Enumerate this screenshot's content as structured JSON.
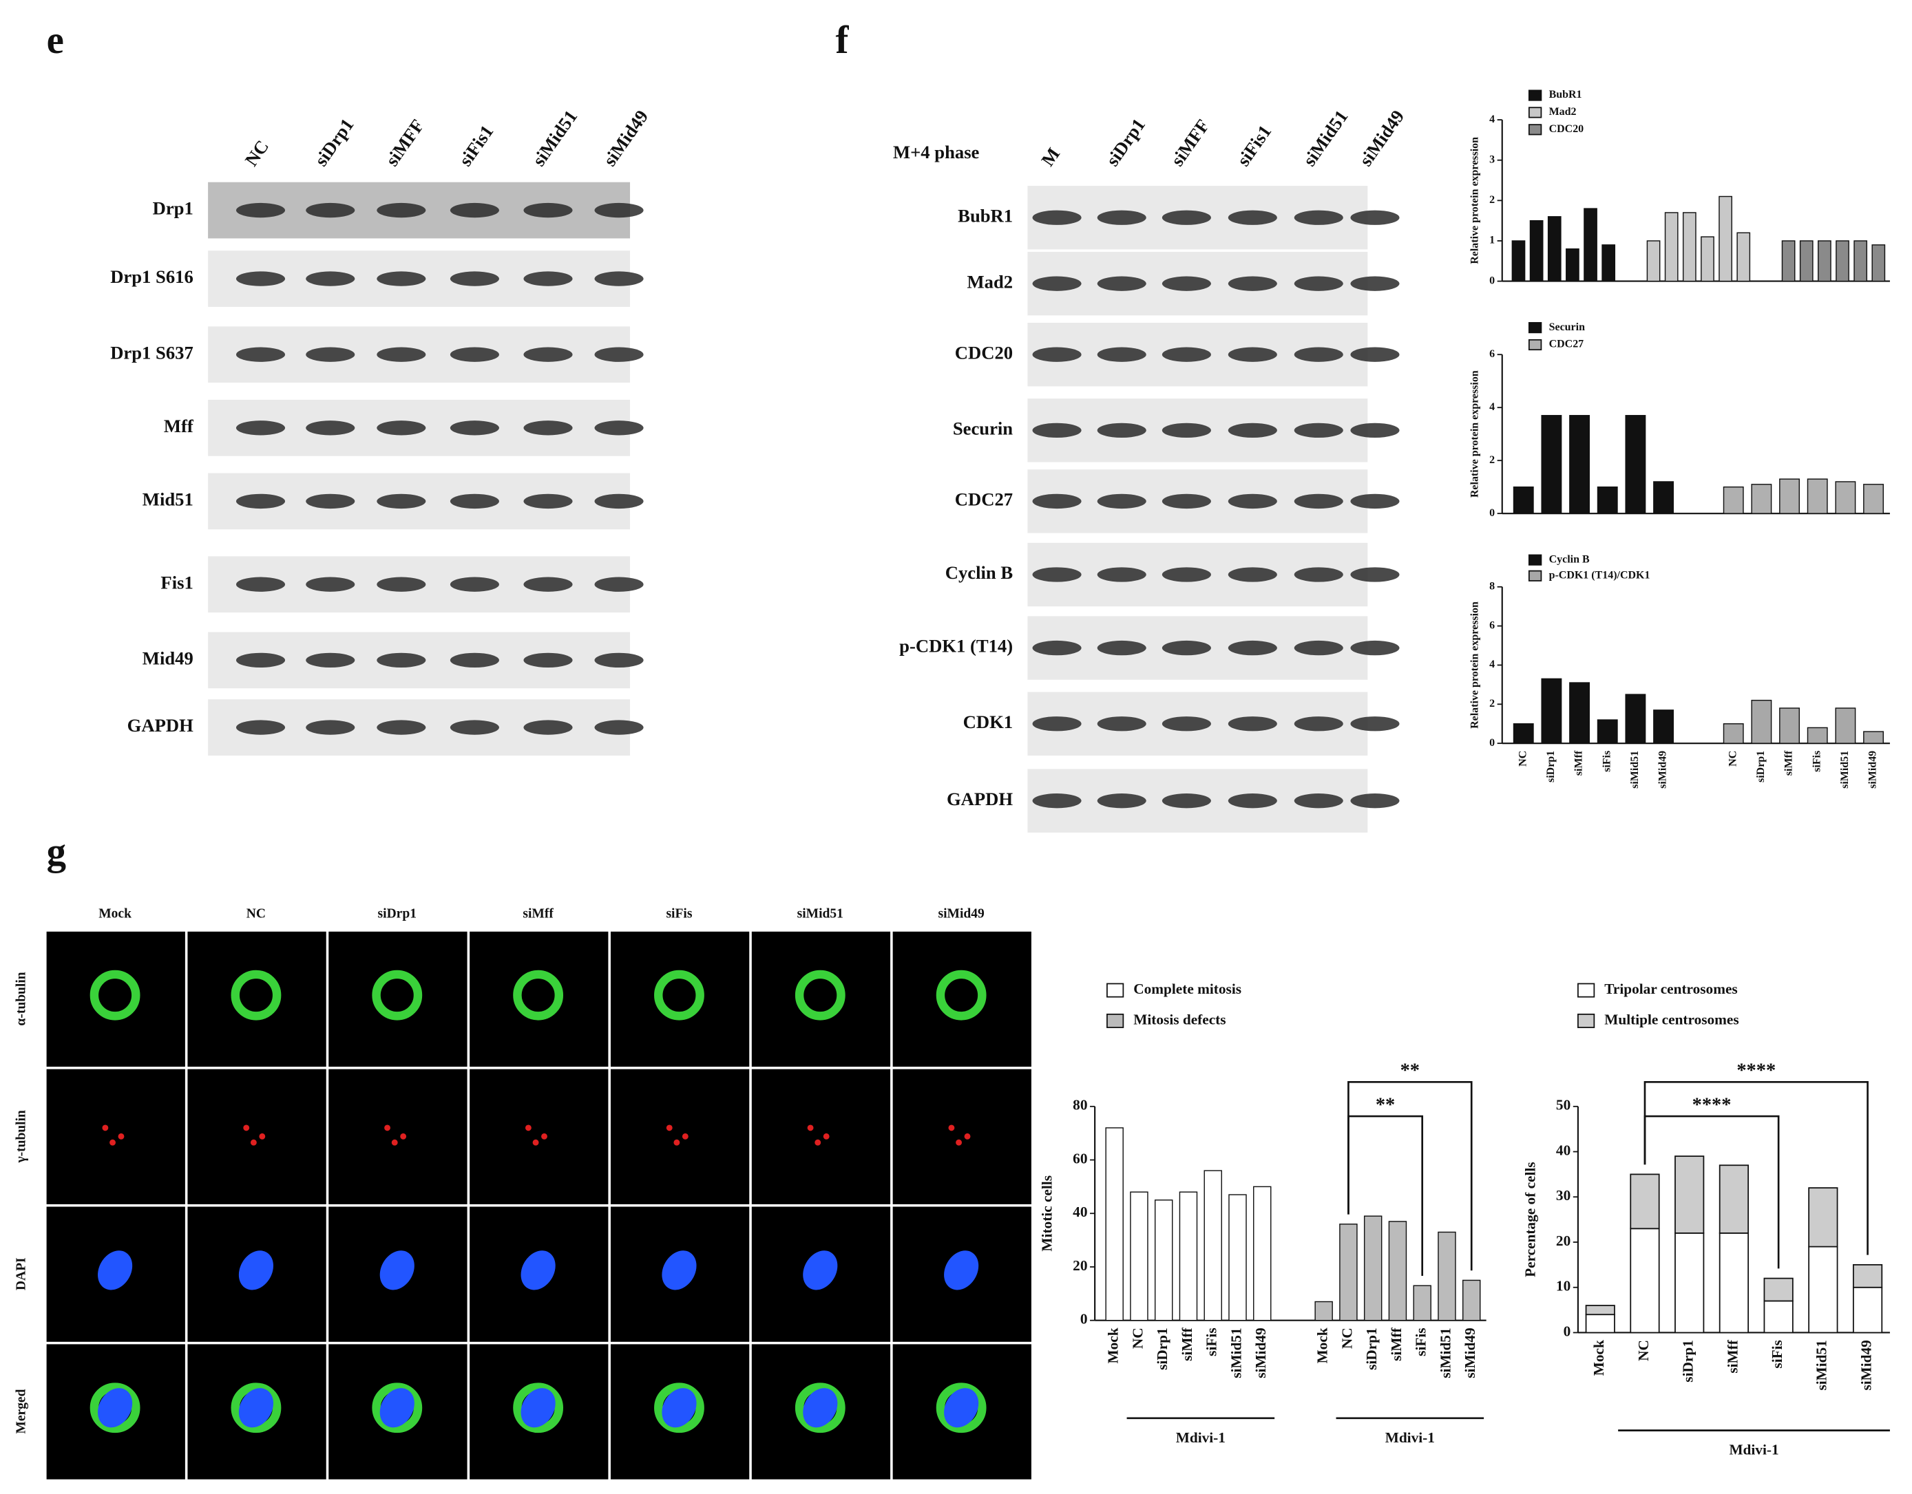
{
  "panels": {
    "e": {
      "label": "e",
      "lanes": [
        "NC",
        "siDrp1",
        "siMFF",
        "siFis1",
        "siMid51",
        "siMid49"
      ],
      "rows": [
        "Drp1",
        "Drp1 S616",
        "Drp1 S637",
        "Mff",
        "Mid51",
        "Fis1",
        "Mid49",
        "GAPDH"
      ]
    },
    "f": {
      "label": "f",
      "phase": "M+4 phase",
      "lanes": [
        "M",
        "siDrp1",
        "siMFF",
        "siFis1",
        "siMid51",
        "siMid49"
      ],
      "rows": [
        "BubR1",
        "Mad2",
        "CDC20",
        "Securin",
        "CDC27",
        "Cyclin B",
        "p-CDK1 (T14)",
        "CDK1",
        "GAPDH"
      ]
    },
    "g": {
      "label": "g",
      "columns": [
        "Mock",
        "NC",
        "siDrp1",
        "siMff",
        "siFis",
        "siMid51",
        "siMid49"
      ],
      "rows": [
        "α-tubulin",
        "γ-tubulin",
        "DAPI",
        "Merged"
      ]
    }
  },
  "chart_data": [
    {
      "type": "bar",
      "ylabel": "Relative protein expression",
      "ylim": [
        0,
        4
      ],
      "yticks": [
        0,
        1,
        2,
        3,
        4
      ],
      "series": [
        {
          "name": "BubR1",
          "color": "#111111",
          "values": [
            1,
            1.5,
            1.6,
            0.8,
            1.8,
            0.9
          ]
        },
        {
          "name": "Mad2",
          "color": "#c8c8c8",
          "values": [
            1,
            1.7,
            1.7,
            1.1,
            2.1,
            1.2
          ]
        },
        {
          "name": "CDC20",
          "color": "#8a8a8a",
          "values": [
            1,
            1,
            1,
            1,
            1,
            0.9
          ]
        }
      ]
    },
    {
      "type": "bar",
      "ylabel": "Relative protein expression",
      "ylim": [
        0,
        6
      ],
      "yticks": [
        0,
        2,
        4,
        6
      ],
      "series": [
        {
          "name": "Securin",
          "color": "#111111",
          "values": [
            1,
            3.7,
            3.7,
            1,
            3.7,
            1.2
          ]
        },
        {
          "name": "CDC27",
          "color": "#b0b0b0",
          "values": [
            1,
            1.1,
            1.3,
            1.3,
            1.2,
            1.1
          ]
        }
      ]
    },
    {
      "type": "bar",
      "ylabel": "Relative protein expression",
      "ylim": [
        0,
        8
      ],
      "yticks": [
        0,
        2,
        4,
        6,
        8
      ],
      "categories": [
        "NC",
        "siDrp1",
        "siMff",
        "siFis",
        "siMid51",
        "siMid49"
      ],
      "series": [
        {
          "name": "Cyclin B",
          "color": "#111111",
          "values": [
            1,
            3.3,
            3.1,
            1.2,
            2.5,
            1.7
          ]
        },
        {
          "name": "p-CDK1 (T14)/CDK1",
          "color": "#a8a8a8",
          "values": [
            1,
            2.2,
            1.8,
            0.8,
            1.8,
            0.6
          ]
        }
      ]
    },
    {
      "type": "bar",
      "ylabel": "Mitotic cells",
      "ylim": [
        0,
        80
      ],
      "yticks": [
        0,
        20,
        40,
        60,
        80
      ],
      "categories": [
        "Mock",
        "NC",
        "siDrp1",
        "siMff",
        "siFis",
        "siMid51",
        "siMid49"
      ],
      "group_labels": [
        "Mdivi-1",
        "Mdivi-1"
      ],
      "annotations": [
        "**",
        "**"
      ],
      "series": [
        {
          "name": "Complete mitosis",
          "color": "#ffffff",
          "values": [
            72,
            48,
            45,
            48,
            56,
            47,
            50
          ]
        },
        {
          "name": "Mitosis defects",
          "color": "#bbbbbb",
          "values": [
            7,
            36,
            39,
            37,
            13,
            33,
            15
          ]
        }
      ]
    },
    {
      "type": "bar",
      "stacked": true,
      "ylabel": "Percentage of cells",
      "ylim": [
        0,
        50
      ],
      "yticks": [
        0,
        10,
        20,
        30,
        40,
        50
      ],
      "categories": [
        "Mock",
        "NC",
        "siDrp1",
        "siMff",
        "siFis",
        "siMid51",
        "siMid49"
      ],
      "group_labels": [
        "Mdivi-1"
      ],
      "annotations": [
        "****",
        "****"
      ],
      "series": [
        {
          "name": "Tripolar centrosomes",
          "color": "#ffffff",
          "values": [
            4,
            23,
            22,
            22,
            7,
            19,
            10
          ]
        },
        {
          "name": "Multiple centrosomes",
          "color": "#cccccc",
          "values": [
            2,
            12,
            17,
            15,
            5,
            13,
            5
          ]
        }
      ]
    }
  ]
}
